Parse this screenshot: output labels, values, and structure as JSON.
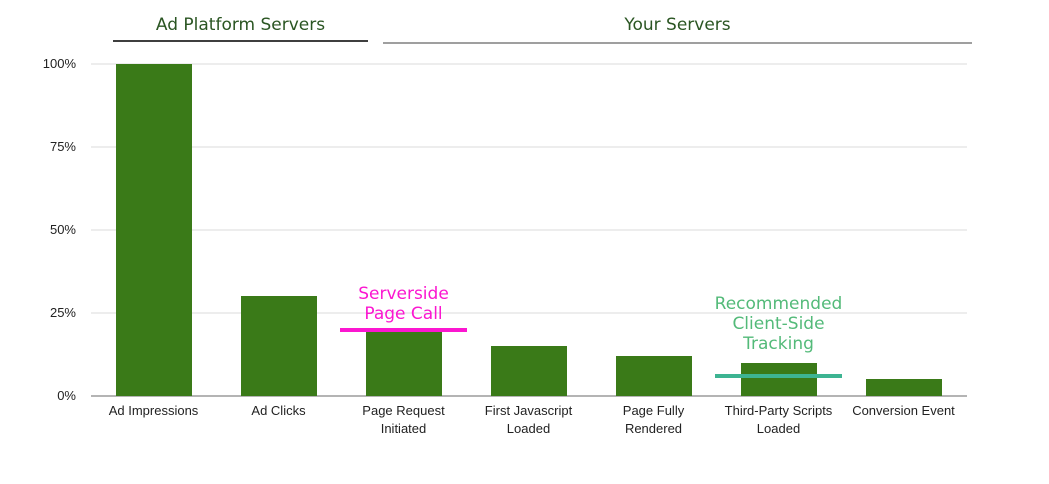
{
  "sections": [
    {
      "label": "Ad Platform Servers",
      "covers": [
        "Ad Impressions",
        "Ad Clicks"
      ]
    },
    {
      "label": "Your Servers",
      "covers": [
        "Page Request Initiated",
        "First Javascript Loaded",
        "Page Fully Rendered",
        "Third-Party Scripts Loaded",
        "Conversion Event"
      ]
    }
  ],
  "annotations": [
    {
      "lines": [
        "Serverside",
        "Page Call"
      ],
      "category": "Page Request Initiated",
      "line_value_pct": 20,
      "text_color": "#fb16d0",
      "line_color": "#fb16d0"
    },
    {
      "lines": [
        "Recommended",
        "Client-Side",
        "Tracking"
      ],
      "category": "Third-Party Scripts Loaded",
      "line_value_pct": 6,
      "text_color": "#53ba79",
      "line_color": "#3db492"
    }
  ],
  "chart_data": {
    "type": "bar",
    "categories": [
      "Ad Impressions",
      "Ad Clicks",
      "Page Request Initiated",
      "First Javascript Loaded",
      "Page Fully Rendered",
      "Third-Party Scripts Loaded",
      "Conversion Event"
    ],
    "values": [
      100,
      30,
      20,
      15,
      12,
      10,
      5
    ],
    "value_unit": "%",
    "title": "",
    "xlabel": "",
    "ylabel": "",
    "ylim": [
      0,
      100
    ],
    "grid": true,
    "bar_color": "#3a7a18",
    "yticks": [
      {
        "value": 0,
        "label": "0%"
      },
      {
        "value": 25,
        "label": "25%"
      },
      {
        "value": 50,
        "label": "50%"
      },
      {
        "value": 75,
        "label": "75%"
      },
      {
        "value": 100,
        "label": "100%"
      }
    ]
  },
  "colors": {
    "section_title": "#2a5522",
    "underline_dark": "#3f3f3f",
    "underline_gray": "#9f9f9f",
    "axis_line": "#b4b4b4",
    "gridline": "#ededed",
    "tick_label": "#222222"
  }
}
